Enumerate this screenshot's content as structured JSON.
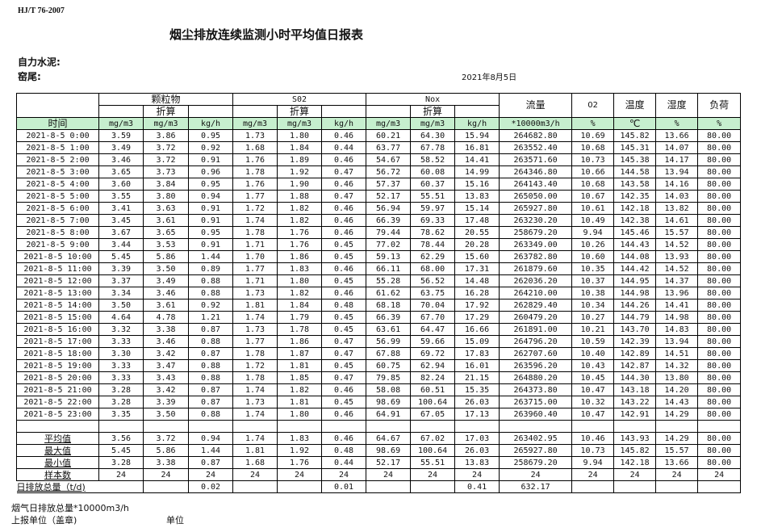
{
  "standard": "HJ/T  76-2007",
  "title": "烟尘排放连续监测小时平均值日报表",
  "company": "自力水泥:",
  "kiln": "窑尾:",
  "date": "2021年8月5日",
  "groups": {
    "particulate": "颗粒物",
    "so2": "S02",
    "nox": "Nox",
    "flow": "流量",
    "o2": "02",
    "temp": "温度",
    "humidity": "湿度",
    "load": "负荷",
    "converted": "折算"
  },
  "units": [
    "时间",
    "mg/m3",
    "mg/m3",
    "kg/h",
    "mg/m3",
    "mg/m3",
    "kg/h",
    "mg/m3",
    "mg/m3",
    "kg/h",
    "*10000m3/h",
    "%",
    "℃",
    "%",
    "%"
  ],
  "rows": [
    [
      "2021-8-5 0:00",
      "3.59",
      "3.86",
      "0.95",
      "1.73",
      "1.80",
      "0.46",
      "60.21",
      "64.30",
      "15.94",
      "264682.80",
      "10.69",
      "145.82",
      "13.66",
      "80.00"
    ],
    [
      "2021-8-5 1:00",
      "3.49",
      "3.72",
      "0.92",
      "1.68",
      "1.84",
      "0.44",
      "63.77",
      "67.78",
      "16.81",
      "263552.40",
      "10.68",
      "145.31",
      "14.07",
      "80.00"
    ],
    [
      "2021-8-5 2:00",
      "3.46",
      "3.72",
      "0.91",
      "1.76",
      "1.89",
      "0.46",
      "54.67",
      "58.52",
      "14.41",
      "263571.60",
      "10.73",
      "145.38",
      "14.17",
      "80.00"
    ],
    [
      "2021-8-5 3:00",
      "3.65",
      "3.73",
      "0.96",
      "1.78",
      "1.92",
      "0.47",
      "56.72",
      "60.08",
      "14.99",
      "264346.80",
      "10.66",
      "144.58",
      "13.94",
      "80.00"
    ],
    [
      "2021-8-5 4:00",
      "3.60",
      "3.84",
      "0.95",
      "1.76",
      "1.90",
      "0.46",
      "57.37",
      "60.37",
      "15.16",
      "264143.40",
      "10.68",
      "143.58",
      "14.16",
      "80.00"
    ],
    [
      "2021-8-5 5:00",
      "3.55",
      "3.80",
      "0.94",
      "1.77",
      "1.88",
      "0.47",
      "52.17",
      "55.51",
      "13.83",
      "265050.00",
      "10.67",
      "142.35",
      "14.03",
      "80.00"
    ],
    [
      "2021-8-5 6:00",
      "3.41",
      "3.63",
      "0.91",
      "1.72",
      "1.82",
      "0.46",
      "56.94",
      "59.97",
      "15.14",
      "265927.80",
      "10.61",
      "142.18",
      "13.82",
      "80.00"
    ],
    [
      "2021-8-5 7:00",
      "3.45",
      "3.61",
      "0.91",
      "1.74",
      "1.82",
      "0.46",
      "66.39",
      "69.33",
      "17.48",
      "263230.20",
      "10.49",
      "142.38",
      "14.61",
      "80.00"
    ],
    [
      "2021-8-5 8:00",
      "3.67",
      "3.65",
      "0.95",
      "1.78",
      "1.76",
      "0.46",
      "79.44",
      "78.62",
      "20.55",
      "258679.20",
      "9.94",
      "145.46",
      "15.57",
      "80.00"
    ],
    [
      "2021-8-5 9:00",
      "3.44",
      "3.53",
      "0.91",
      "1.71",
      "1.76",
      "0.45",
      "77.02",
      "78.44",
      "20.28",
      "263349.00",
      "10.26",
      "144.43",
      "14.52",
      "80.00"
    ],
    [
      "2021-8-5 10:00",
      "5.45",
      "5.86",
      "1.44",
      "1.70",
      "1.86",
      "0.45",
      "59.13",
      "62.29",
      "15.60",
      "263782.80",
      "10.60",
      "144.08",
      "13.93",
      "80.00"
    ],
    [
      "2021-8-5 11:00",
      "3.39",
      "3.50",
      "0.89",
      "1.77",
      "1.83",
      "0.46",
      "66.11",
      "68.00",
      "17.31",
      "261879.60",
      "10.35",
      "144.42",
      "14.52",
      "80.00"
    ],
    [
      "2021-8-5 12:00",
      "3.37",
      "3.49",
      "0.88",
      "1.71",
      "1.80",
      "0.45",
      "55.28",
      "56.52",
      "14.48",
      "262036.20",
      "10.37",
      "144.95",
      "14.37",
      "80.00"
    ],
    [
      "2021-8-5 13:00",
      "3.34",
      "3.46",
      "0.88",
      "1.73",
      "1.82",
      "0.46",
      "61.62",
      "63.75",
      "16.28",
      "264210.00",
      "10.38",
      "144.98",
      "13.96",
      "80.00"
    ],
    [
      "2021-8-5 14:00",
      "3.50",
      "3.61",
      "0.92",
      "1.81",
      "1.84",
      "0.48",
      "68.18",
      "70.04",
      "17.92",
      "262829.40",
      "10.34",
      "144.26",
      "14.41",
      "80.00"
    ],
    [
      "2021-8-5 15:00",
      "4.64",
      "4.78",
      "1.21",
      "1.74",
      "1.79",
      "0.45",
      "66.39",
      "67.70",
      "17.29",
      "260479.20",
      "10.27",
      "144.79",
      "14.98",
      "80.00"
    ],
    [
      "2021-8-5 16:00",
      "3.32",
      "3.38",
      "0.87",
      "1.73",
      "1.78",
      "0.45",
      "63.61",
      "64.47",
      "16.66",
      "261891.00",
      "10.21",
      "143.70",
      "14.83",
      "80.00"
    ],
    [
      "2021-8-5 17:00",
      "3.33",
      "3.46",
      "0.88",
      "1.77",
      "1.86",
      "0.47",
      "56.99",
      "59.66",
      "15.09",
      "264796.20",
      "10.59",
      "142.39",
      "13.94",
      "80.00"
    ],
    [
      "2021-8-5 18:00",
      "3.30",
      "3.42",
      "0.87",
      "1.78",
      "1.87",
      "0.47",
      "67.88",
      "69.72",
      "17.83",
      "262707.60",
      "10.40",
      "142.89",
      "14.51",
      "80.00"
    ],
    [
      "2021-8-5 19:00",
      "3.33",
      "3.47",
      "0.88",
      "1.72",
      "1.81",
      "0.45",
      "60.75",
      "62.94",
      "16.01",
      "263596.20",
      "10.43",
      "142.87",
      "14.32",
      "80.00"
    ],
    [
      "2021-8-5 20:00",
      "3.33",
      "3.43",
      "0.88",
      "1.78",
      "1.85",
      "0.47",
      "79.85",
      "82.24",
      "21.15",
      "264880.20",
      "10.45",
      "144.30",
      "13.80",
      "80.00"
    ],
    [
      "2021-8-5 21:00",
      "3.28",
      "3.42",
      "0.87",
      "1.74",
      "1.82",
      "0.46",
      "58.08",
      "60.51",
      "15.35",
      "264373.80",
      "10.47",
      "143.18",
      "14.20",
      "80.00"
    ],
    [
      "2021-8-5 22:00",
      "3.28",
      "3.39",
      "0.87",
      "1.73",
      "1.81",
      "0.45",
      "98.69",
      "100.64",
      "26.03",
      "263715.00",
      "10.32",
      "143.22",
      "14.43",
      "80.00"
    ],
    [
      "2021-8-5 23:00",
      "3.35",
      "3.50",
      "0.88",
      "1.74",
      "1.80",
      "0.46",
      "64.91",
      "67.05",
      "17.13",
      "263960.40",
      "10.47",
      "142.91",
      "14.29",
      "80.00"
    ]
  ],
  "stats": [
    [
      "平均值",
      "3.56",
      "3.72",
      "0.94",
      "1.74",
      "1.83",
      "0.46",
      "64.67",
      "67.02",
      "17.03",
      "263402.95",
      "10.46",
      "143.93",
      "14.29",
      "80.00"
    ],
    [
      "最大值",
      "5.45",
      "5.86",
      "1.44",
      "1.81",
      "1.92",
      "0.48",
      "98.69",
      "100.64",
      "26.03",
      "265927.80",
      "10.73",
      "145.82",
      "15.57",
      "80.00"
    ],
    [
      "最小值",
      "3.28",
      "3.38",
      "0.87",
      "1.68",
      "1.76",
      "0.44",
      "52.17",
      "55.51",
      "13.83",
      "258679.20",
      "9.94",
      "142.18",
      "13.66",
      "80.00"
    ],
    [
      "样本数",
      "24",
      "24",
      "24",
      "24",
      "24",
      "24",
      "24",
      "24",
      "24",
      "24",
      "24",
      "24",
      "24",
      "24"
    ]
  ],
  "daily_total": {
    "label": "日排放总量（t/d)",
    "particulate": "0.02",
    "so2": "0.01",
    "nox": "0.41",
    "flow": "632.17"
  },
  "footer": {
    "flue_gas": "烟气日排放总量*10000m3/h",
    "reporter": "上报单位（盖章)",
    "unit": "单位"
  },
  "colors": {
    "unit_row_bg": "#c6efce"
  }
}
